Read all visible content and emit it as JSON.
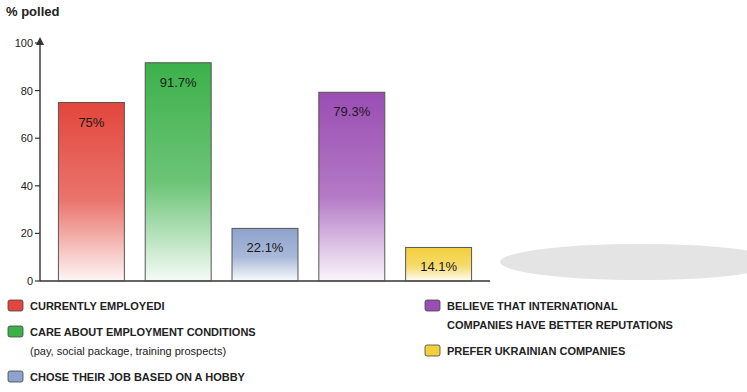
{
  "chart_data": {
    "type": "bar",
    "ylabel": "% polled",
    "categories": [
      "CURRENTLY EMPLOYEDI",
      "CARE ABOUT EMPLOYMENT CONDITIONS (pay, social package, training prospects)",
      "CHOSE THEIR JOB BASED ON A HOBBY",
      "BELIEVE THAT INTERNATIONAL COMPANIES HAVE BETTER REPUTATIONS",
      "PREFER UKRAINIAN COMPANIES"
    ],
    "values": [
      75,
      91.7,
      22.1,
      79.3,
      14.1
    ],
    "value_labels": [
      "75%",
      "91.7%",
      "22.1%",
      "79.3%",
      "14.1%"
    ],
    "colors": [
      "#e3463c",
      "#3cb14a",
      "#8ea2cc",
      "#9a4db3",
      "#f3cf3c"
    ],
    "ylim": [
      0,
      100
    ],
    "yticks": [
      0,
      20,
      40,
      60,
      80,
      100
    ],
    "grid": false,
    "data_labels": true,
    "tick_labels": "y",
    "legend": "bottom"
  }
}
